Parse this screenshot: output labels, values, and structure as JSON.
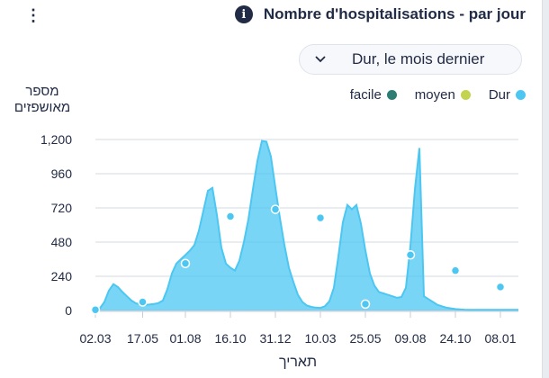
{
  "header": {
    "title": "Nombre d'hospitalisations - par jour",
    "info_icon": "info-icon",
    "menu_icon": "kebab-menu-icon"
  },
  "dropdown": {
    "value": "Dur, le mois dernier",
    "icon": "chevron-down-icon"
  },
  "legend": [
    {
      "label": "facile",
      "color": "#2e7d74"
    },
    {
      "label": "moyen",
      "color": "#c3d34f"
    },
    {
      "label": "Dur",
      "color": "#4cc7f2"
    }
  ],
  "chart_data": {
    "type": "area",
    "ylabel": "מספר מאושפזים",
    "xlabel": "תאריך",
    "ylim": [
      0,
      1200
    ],
    "yticks": [
      0,
      240,
      480,
      720,
      960,
      1200
    ],
    "ytick_labels": [
      "0",
      "240",
      "480",
      "720",
      "960",
      "1,200"
    ],
    "xtick_labels": [
      "02.03",
      "17.05",
      "01.08",
      "16.10",
      "31.12",
      "10.03",
      "25.05",
      "09.08",
      "24.10",
      "08.01"
    ],
    "x_index_range": [
      0,
      94
    ],
    "xtick_positions": [
      0,
      10.5,
      20,
      30,
      40,
      50,
      60,
      70,
      80,
      90
    ],
    "series": [
      {
        "name": "Dur",
        "color": "#4cc7f2",
        "x": [
          0,
          1,
          2,
          3,
          4,
          5,
          6,
          7,
          8,
          9,
          10,
          11,
          12,
          13,
          14,
          15,
          16,
          17,
          18,
          19,
          20,
          21,
          22,
          23,
          24,
          25,
          26,
          27,
          28,
          29,
          30,
          31,
          32,
          33,
          34,
          35,
          36,
          37,
          38,
          39,
          40,
          41,
          42,
          43,
          44,
          45,
          46,
          47,
          48,
          49,
          50,
          51,
          52,
          53,
          54,
          55,
          56,
          57,
          58,
          59,
          60,
          61,
          62,
          63,
          64,
          65,
          66,
          67,
          68,
          69,
          70,
          71,
          72,
          73,
          74,
          75,
          76,
          77,
          78,
          79,
          80,
          81,
          82,
          83,
          84,
          85,
          86,
          87,
          88,
          89,
          90,
          91,
          92,
          93,
          94
        ],
        "values": [
          5,
          15,
          60,
          140,
          185,
          165,
          130,
          100,
          70,
          50,
          45,
          40,
          42,
          46,
          52,
          70,
          150,
          260,
          330,
          360,
          390,
          420,
          460,
          560,
          700,
          840,
          860,
          670,
          440,
          330,
          300,
          280,
          350,
          480,
          640,
          850,
          1050,
          1190,
          1185,
          1080,
          860,
          650,
          460,
          300,
          200,
          110,
          60,
          35,
          25,
          20,
          18,
          30,
          65,
          160,
          380,
          620,
          740,
          710,
          740,
          610,
          420,
          260,
          175,
          130,
          120,
          110,
          100,
          90,
          95,
          160,
          450,
          850,
          1140,
          100,
          80,
          60,
          40,
          30,
          20,
          15,
          10,
          8,
          6,
          5,
          5,
          5,
          5,
          5,
          5,
          5,
          5,
          5,
          5,
          5,
          5
        ],
        "markers_x": [
          0,
          10.5,
          20,
          30,
          40,
          50,
          60,
          70,
          80,
          90
        ],
        "markers_y": [
          5,
          60,
          330,
          660,
          710,
          650,
          45,
          390,
          280,
          165
        ]
      }
    ],
    "grid": true
  }
}
